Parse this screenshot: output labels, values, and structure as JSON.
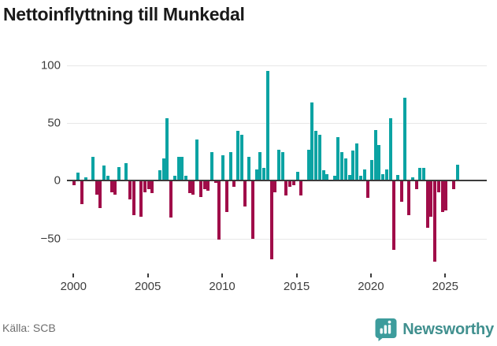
{
  "title": "Nettoinflyttning till Munkedal",
  "source": "Källa: SCB",
  "brand": {
    "name": "Newsworthy"
  },
  "colors": {
    "positive_bar": "#0ba3a3",
    "negative_bar": "#a00d49",
    "zero_axis": "#3c3c3c",
    "gridline": "#e7e7e7",
    "axis_label": "#3d3d3d",
    "source_text": "#6e6e6e",
    "brand_teal": "#3d9c9c",
    "title_text": "#1a1a1a"
  },
  "chart_data": {
    "type": "bar",
    "title": "Nettoinflyttning till Munkedal",
    "frequency": "quarterly",
    "start_year": 2000,
    "x_ticks": [
      {
        "label": "2000",
        "quarter_index": 0
      },
      {
        "label": "2005",
        "quarter_index": 20
      },
      {
        "label": "2010",
        "quarter_index": 40
      },
      {
        "label": "2015",
        "quarter_index": 60
      },
      {
        "label": "2020",
        "quarter_index": 80
      },
      {
        "label": "2025",
        "quarter_index": 100
      }
    ],
    "y_ticks": [
      {
        "label": "100",
        "value": 100
      },
      {
        "label": "50",
        "value": 50
      },
      {
        "label": "0",
        "value": 0
      },
      {
        "label": "−50",
        "value": -50
      }
    ],
    "ylim": [
      -75,
      105
    ],
    "grid": true,
    "legend": false,
    "values": [
      -4,
      7,
      -20,
      3,
      0,
      21,
      -12,
      -24,
      13,
      4,
      -10,
      -12,
      12,
      0,
      15,
      -16,
      -30,
      0,
      -31,
      -10,
      -7,
      -11,
      0,
      9,
      19,
      54,
      -32,
      4,
      21,
      21,
      4,
      -11,
      -12,
      36,
      -14,
      -7,
      -9,
      25,
      -2,
      -51,
      22,
      -27,
      25,
      -5,
      43,
      40,
      -22,
      21,
      -50,
      10,
      25,
      11,
      95,
      -68,
      -10,
      27,
      25,
      -13,
      -5,
      -4,
      8,
      -13,
      0,
      27,
      68,
      43,
      40,
      9,
      6,
      0,
      4,
      38,
      25,
      19,
      5,
      26,
      32,
      4,
      10,
      -15,
      18,
      44,
      31,
      6,
      10,
      54,
      -60,
      5,
      -18,
      72,
      -30,
      3,
      -7,
      11,
      11,
      -41,
      -31,
      -70,
      -10,
      -27,
      -26,
      0,
      -7,
      14
    ]
  }
}
